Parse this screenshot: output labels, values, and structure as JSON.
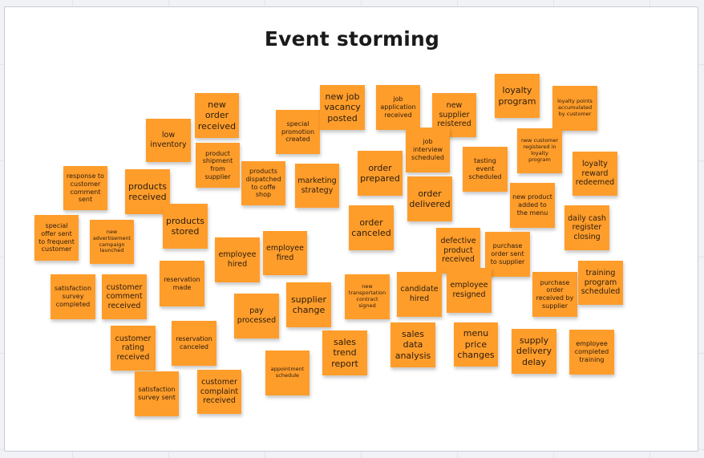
{
  "board": {
    "title": "Event storming",
    "notes": [
      {
        "id": "new-order-received",
        "text": "new order received"
      },
      {
        "id": "low-inventory",
        "text": "low inventory"
      },
      {
        "id": "product-shipment-from-supplier",
        "text": "product shipment from supplier"
      },
      {
        "id": "special-promotion-created",
        "text": "special promotion created"
      },
      {
        "id": "new-job-vacancy-posted",
        "text": "new job vacancy posted"
      },
      {
        "id": "job-application-received",
        "text": "job application received"
      },
      {
        "id": "new-supplier-registered",
        "text": "new supplier reistered"
      },
      {
        "id": "loyalty-program",
        "text": "loyalty program"
      },
      {
        "id": "loyalty-points-accumulated",
        "text": "loyalty points accumulated by customer"
      },
      {
        "id": "new-customer-registered",
        "text": "new customer registered in loyalty program"
      },
      {
        "id": "response-to-customer-comment-sent",
        "text": "response to customer comment sent"
      },
      {
        "id": "products-received",
        "text": "products received"
      },
      {
        "id": "products-dispatched",
        "text": "products dispatched to coffe shop"
      },
      {
        "id": "marketing-strategy",
        "text": "marketing strategy"
      },
      {
        "id": "order-prepared",
        "text": "order prepared"
      },
      {
        "id": "job-interview-scheduled",
        "text": "job interview scheduled"
      },
      {
        "id": "tasting-event-scheduled",
        "text": "tasting event scheduled"
      },
      {
        "id": "loyalty-reward-redeemed",
        "text": "loyalty reward redeemed"
      },
      {
        "id": "order-delivered",
        "text": "order delivered"
      },
      {
        "id": "new-product-added",
        "text": "new product added to the menu"
      },
      {
        "id": "special-offer-sent",
        "text": "special offer sent to frequent customer"
      },
      {
        "id": "new-advertisement-campaign",
        "text": "new advertisement campaign launched"
      },
      {
        "id": "products-stored",
        "text": "products stored"
      },
      {
        "id": "order-canceled",
        "text": "order canceled"
      },
      {
        "id": "daily-cash-register-closing",
        "text": "daily cash register closing"
      },
      {
        "id": "employee-hired",
        "text": "employee hired"
      },
      {
        "id": "employee-fired",
        "text": "employee fired"
      },
      {
        "id": "defective-product-received",
        "text": "defective product received"
      },
      {
        "id": "purchase-order-sent",
        "text": "purchase order sent to supplier"
      },
      {
        "id": "reservation-made",
        "text": "reservation made"
      },
      {
        "id": "satisfaction-survey-completed",
        "text": "satisfaction survey completed"
      },
      {
        "id": "customer-comment-received",
        "text": "customer comment received"
      },
      {
        "id": "new-transportation-contract-signed",
        "text": "new transportation contract signed"
      },
      {
        "id": "candidate-hired",
        "text": "candidate hired"
      },
      {
        "id": "employee-resigned",
        "text": "employee resigned"
      },
      {
        "id": "purchase-order-received",
        "text": "purchase order received by supplier"
      },
      {
        "id": "training-program-scheduled",
        "text": "training program scheduled"
      },
      {
        "id": "pay-processed",
        "text": "pay processed"
      },
      {
        "id": "supplier-change",
        "text": "supplier change"
      },
      {
        "id": "customer-rating-received",
        "text": "customer rating received"
      },
      {
        "id": "reservation-canceled",
        "text": "reservation canceled"
      },
      {
        "id": "sales-trend-report",
        "text": "sales trend report"
      },
      {
        "id": "sales-data-analysis",
        "text": "sales data analysis"
      },
      {
        "id": "menu-price-changes",
        "text": "menu price changes"
      },
      {
        "id": "supply-delivery-delay",
        "text": "supply delivery delay"
      },
      {
        "id": "employee-completed-training",
        "text": "employee completed training"
      },
      {
        "id": "appointment-schedule",
        "text": "appointment schedule"
      },
      {
        "id": "satisfaction-survey-sent",
        "text": "satisfaction survey sent"
      },
      {
        "id": "customer-complaint-received",
        "text": "customer complaint received"
      }
    ]
  }
}
